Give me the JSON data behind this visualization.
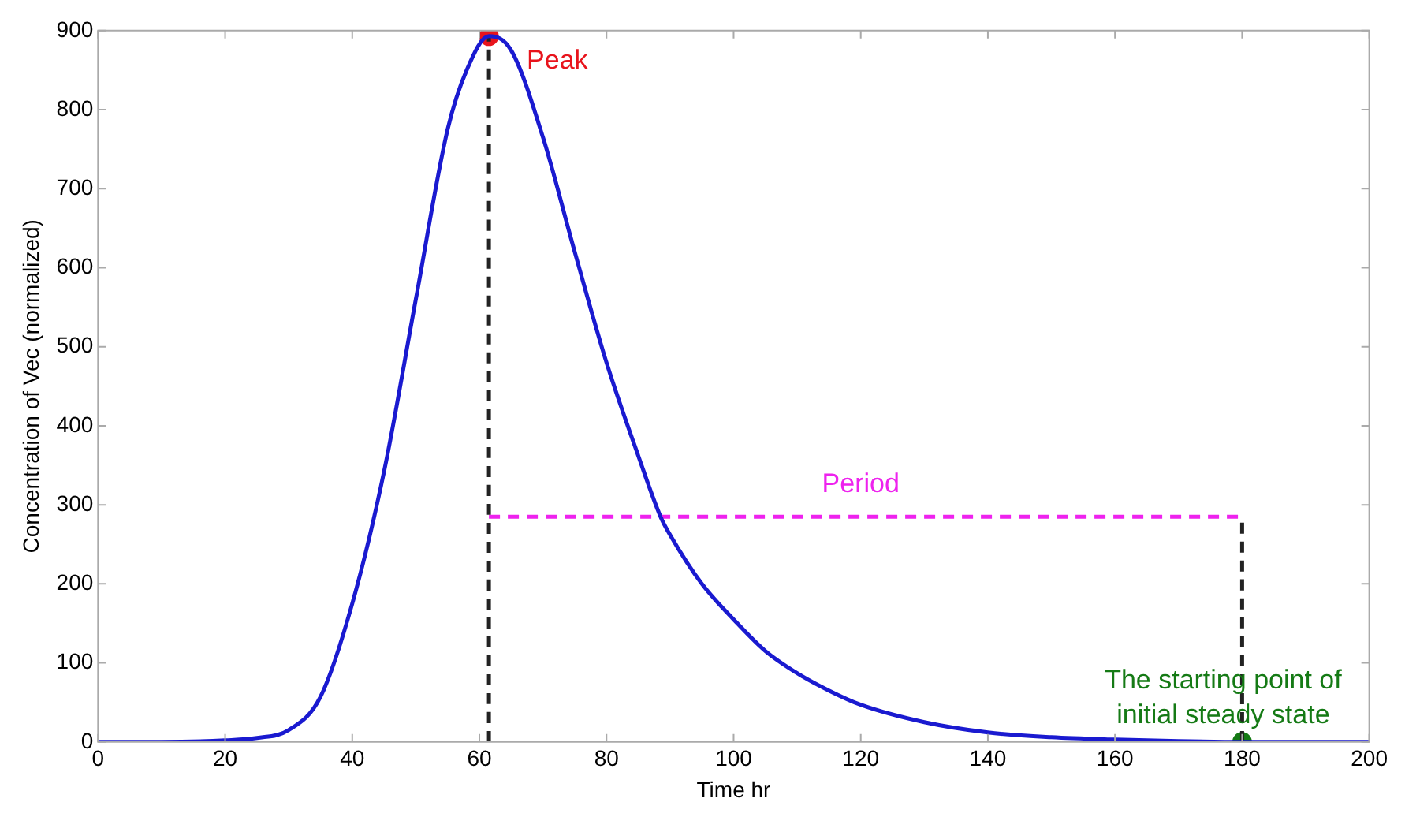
{
  "chart_data": {
    "type": "line",
    "xlabel": "Time hr",
    "ylabel": "Concentration of Vec (normalized)",
    "xlim": [
      0,
      200
    ],
    "xticks": [
      0,
      20,
      40,
      60,
      80,
      100,
      120,
      140,
      160,
      180,
      200
    ],
    "ylim": [
      0,
      900
    ],
    "yticks": [
      0,
      100,
      200,
      300,
      400,
      500,
      600,
      700,
      800,
      900
    ],
    "grid": false,
    "legend": false,
    "marker": "none",
    "line_style": "solid",
    "series": [
      {
        "type": "line",
        "color": "#1a1ad0",
        "x": [
          0,
          10,
          20,
          25,
          30,
          35,
          40,
          45,
          50,
          55,
          58,
          61.5,
          65,
          70,
          75,
          80,
          85,
          88.5,
          90,
          95,
          100,
          105,
          110,
          115,
          120,
          130,
          140,
          150,
          160,
          170,
          180,
          190,
          200
        ],
        "values": [
          0,
          0,
          2,
          5,
          15,
          57,
          175,
          342,
          560,
          775,
          850,
          893,
          875,
          765,
          620,
          480,
          362,
          285,
          262,
          200,
          155,
          115,
          87,
          65,
          47,
          25,
          12,
          6,
          3,
          1,
          0,
          0,
          0
        ]
      },
      {
        "type": "line",
        "color": "#222222",
        "line_style": "dashed",
        "x": [
          61.5,
          61.5
        ],
        "values": [
          0,
          893
        ]
      },
      {
        "type": "line",
        "color": "#ee22ee",
        "line_style": "dashed",
        "x": [
          61.5,
          180
        ],
        "values": [
          285,
          285
        ]
      },
      {
        "type": "line",
        "color": "#222222",
        "line_style": "dashed",
        "x": [
          180,
          180
        ],
        "values": [
          0,
          285
        ]
      },
      {
        "type": "scatter",
        "color": "#e8141c",
        "marker": "circle",
        "x": [
          61.5
        ],
        "values": [
          893
        ]
      },
      {
        "type": "scatter",
        "color": "#157a15",
        "marker": "circle",
        "x": [
          180
        ],
        "values": [
          0
        ]
      }
    ],
    "annotations": [
      {
        "text": "Peak",
        "x": 61.5,
        "y": 893
      },
      {
        "text": "Period",
        "x": 120,
        "y": 285
      },
      {
        "text": "The starting point of initial steady state",
        "x": 180,
        "y": 0
      }
    ]
  }
}
